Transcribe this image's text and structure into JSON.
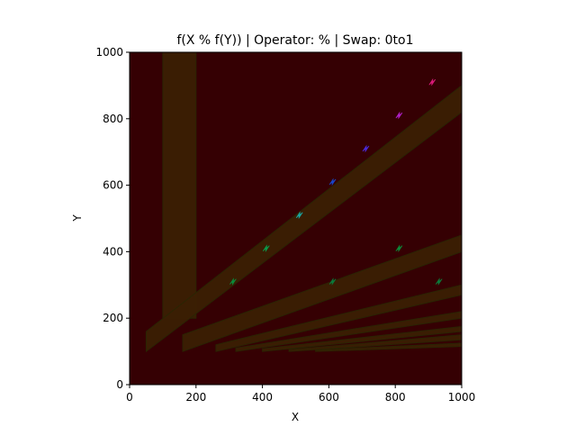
{
  "chart_data": {
    "type": "heatmap",
    "title": "f(X % f(Y)) | Operator: % | Swap: 0to1",
    "xlabel": "X",
    "ylabel": "Y",
    "xlim": [
      0,
      1000
    ],
    "ylim": [
      0,
      1000
    ],
    "xticks": [
      0,
      200,
      400,
      600,
      800,
      1000
    ],
    "yticks": [
      0,
      200,
      400,
      600,
      800,
      1000
    ],
    "xtick_labels": [
      "0",
      "200",
      "400",
      "600",
      "800",
      "1000"
    ],
    "ytick_labels": [
      "0",
      "200",
      "400",
      "600",
      "800",
      "1000"
    ],
    "grid": false,
    "legend": "none",
    "colors": {
      "background": "#350003",
      "band": "#3b1f03",
      "band_edge": "#2a2604",
      "axis": "#000000"
    },
    "bands": [
      {
        "kind": "vertical",
        "x": [
          100,
          200
        ],
        "y": [
          200,
          1000
        ]
      },
      {
        "kind": "diagonal",
        "x": [
          50,
          1000
        ],
        "y_start": [
          100,
          160
        ],
        "y_end": [
          820,
          900
        ]
      },
      {
        "kind": "diagonal",
        "x": [
          160,
          1000
        ],
        "y_start": [
          100,
          150
        ],
        "y_end": [
          400,
          450
        ]
      },
      {
        "kind": "diagonal",
        "x": [
          260,
          1000
        ],
        "y_start": [
          100,
          120
        ],
        "y_end": [
          270,
          300
        ]
      },
      {
        "kind": "diagonal",
        "x": [
          320,
          1000
        ],
        "y_start": [
          100,
          110
        ],
        "y_end": [
          200,
          220
        ]
      },
      {
        "kind": "diagonal",
        "x": [
          400,
          1000
        ],
        "y_start": [
          100,
          108
        ],
        "y_end": [
          160,
          175
        ]
      },
      {
        "kind": "diagonal",
        "x": [
          480,
          1000
        ],
        "y_start": [
          100,
          105
        ],
        "y_end": [
          135,
          150
        ]
      },
      {
        "kind": "diagonal",
        "x": [
          560,
          1000
        ],
        "y_start": [
          100,
          104
        ],
        "y_end": [
          115,
          125
        ]
      }
    ],
    "points": [
      {
        "x": 310,
        "y": 310,
        "color": "#0b8a3a"
      },
      {
        "x": 410,
        "y": 410,
        "color": "#0b9a4a"
      },
      {
        "x": 510,
        "y": 510,
        "color": "#1aa6a0"
      },
      {
        "x": 610,
        "y": 610,
        "color": "#1846c8"
      },
      {
        "x": 710,
        "y": 710,
        "color": "#4a2ad8"
      },
      {
        "x": 810,
        "y": 810,
        "color": "#b020c8"
      },
      {
        "x": 910,
        "y": 910,
        "color": "#d81a78"
      },
      {
        "x": 610,
        "y": 310,
        "color": "#0b7a3a"
      },
      {
        "x": 810,
        "y": 410,
        "color": "#0b8a3a"
      },
      {
        "x": 930,
        "y": 310,
        "color": "#0b7a3a"
      }
    ]
  }
}
